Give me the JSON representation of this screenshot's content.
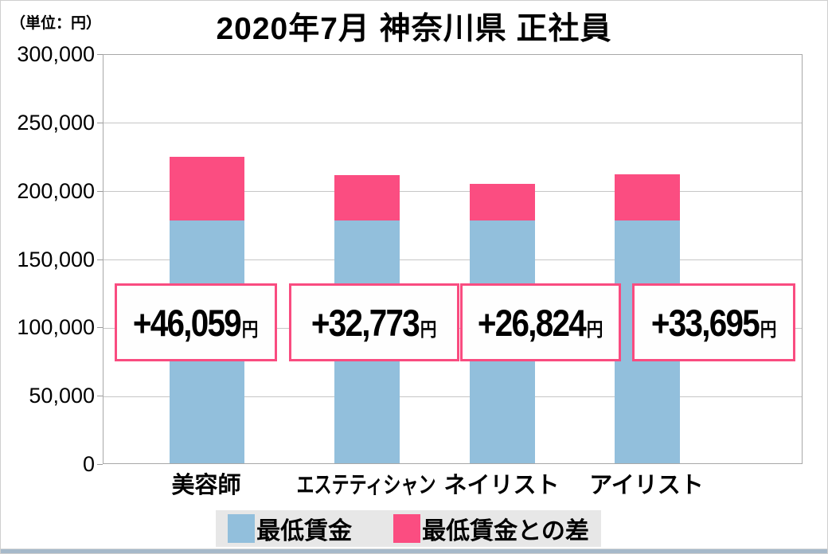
{
  "meta": {
    "unit_label": "（単位：円）",
    "title": "2020年7月 神奈川県 正社員"
  },
  "colors": {
    "bar_blue": "#92BFDC",
    "bar_pink": "#FB4D81",
    "annotation_border": "#F94C80",
    "legend_bg": "#E7E7E7",
    "gridline": "#C6C6C6",
    "bottom_strip": "#A6B9CA"
  },
  "chart_data": {
    "type": "bar",
    "stacked": true,
    "title": "2020年7月 神奈川県 正社員",
    "unit": "円",
    "categories": [
      "美容師",
      "エステティシャン",
      "ネイリスト",
      "アイリスト"
    ],
    "series": [
      {
        "name": "最低賃金",
        "color": "#92BFDC",
        "values": [
          177936,
          177936,
          177936,
          177936
        ]
      },
      {
        "name": "最低賃金との差",
        "color": "#FB4D81",
        "values": [
          46059,
          32773,
          26824,
          33695
        ]
      }
    ],
    "totals": [
      223995,
      210709,
      204760,
      211631
    ],
    "annotations": {
      "values": [
        "+46,059",
        "+32,773",
        "+26,824",
        "+33,695"
      ],
      "unit": "円"
    },
    "y_ticks": [
      "300,000",
      "250,000",
      "200,000",
      "150,000",
      "100,000",
      "50,000",
      "0"
    ],
    "ylim": [
      0,
      300000
    ],
    "grid": true,
    "legend_position": "bottom"
  },
  "legend": {
    "items": [
      {
        "label": "最低賃金",
        "color": "#92BFDC"
      },
      {
        "label": "最低賃金との差",
        "color": "#FB4D81"
      }
    ]
  }
}
